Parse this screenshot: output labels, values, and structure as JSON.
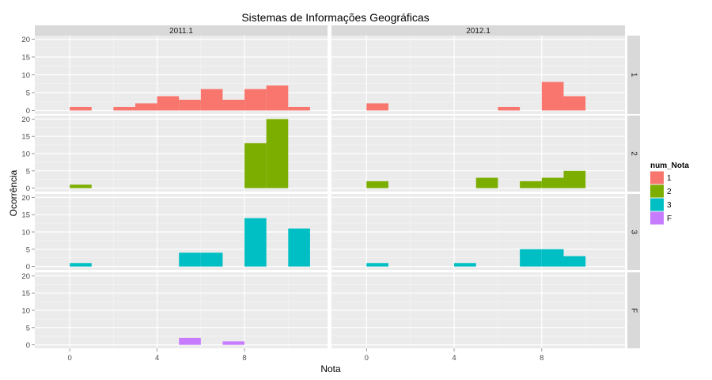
{
  "chart_data": {
    "type": "bar",
    "title": "Sistemas de Informações Geográficas",
    "xlabel": "Nota",
    "ylabel": "Ocorrência",
    "xlim": [
      -1.6,
      11.8
    ],
    "ylim": [
      -1,
      21
    ],
    "x_ticks": [
      0,
      4,
      8
    ],
    "y_ticks": [
      0,
      5,
      10,
      15,
      20
    ],
    "bin_width": 1,
    "col_facets": [
      "2011.1",
      "2012.1"
    ],
    "row_facets": [
      "1",
      "2",
      "3",
      "F"
    ],
    "legend": {
      "title": "num_Nota",
      "position": "right",
      "items": [
        {
          "label": "1",
          "color": "#F8766D"
        },
        {
          "label": "2",
          "color": "#7CAE00"
        },
        {
          "label": "3",
          "color": "#00BFC4"
        },
        {
          "label": "F",
          "color": "#C77CFF"
        }
      ]
    },
    "panels": [
      {
        "col": "2011.1",
        "row": "1",
        "bars": [
          [
            0,
            1
          ],
          [
            2,
            1
          ],
          [
            3,
            2
          ],
          [
            4,
            4
          ],
          [
            5,
            3
          ],
          [
            6,
            6
          ],
          [
            7,
            3
          ],
          [
            8,
            6
          ],
          [
            9,
            7
          ],
          [
            10,
            1
          ]
        ]
      },
      {
        "col": "2011.1",
        "row": "2",
        "bars": [
          [
            0,
            1
          ],
          [
            8,
            13
          ],
          [
            9,
            20
          ]
        ]
      },
      {
        "col": "2011.1",
        "row": "3",
        "bars": [
          [
            0,
            1
          ],
          [
            5,
            4
          ],
          [
            6,
            4
          ],
          [
            8,
            14
          ],
          [
            10,
            11
          ]
        ]
      },
      {
        "col": "2011.1",
        "row": "F",
        "bars": [
          [
            5,
            2
          ],
          [
            7,
            1
          ]
        ]
      },
      {
        "col": "2012.1",
        "row": "1",
        "bars": [
          [
            0,
            2
          ],
          [
            6,
            1
          ],
          [
            8,
            8
          ],
          [
            9,
            4
          ]
        ]
      },
      {
        "col": "2012.1",
        "row": "2",
        "bars": [
          [
            0,
            2
          ],
          [
            5,
            3
          ],
          [
            7,
            2
          ],
          [
            8,
            3
          ],
          [
            9,
            5
          ]
        ]
      },
      {
        "col": "2012.1",
        "row": "3",
        "bars": [
          [
            0,
            1
          ],
          [
            4,
            1
          ],
          [
            7,
            5
          ],
          [
            8,
            5
          ],
          [
            9,
            3
          ]
        ]
      },
      {
        "col": "2012.1",
        "row": "F",
        "bars": []
      }
    ]
  }
}
